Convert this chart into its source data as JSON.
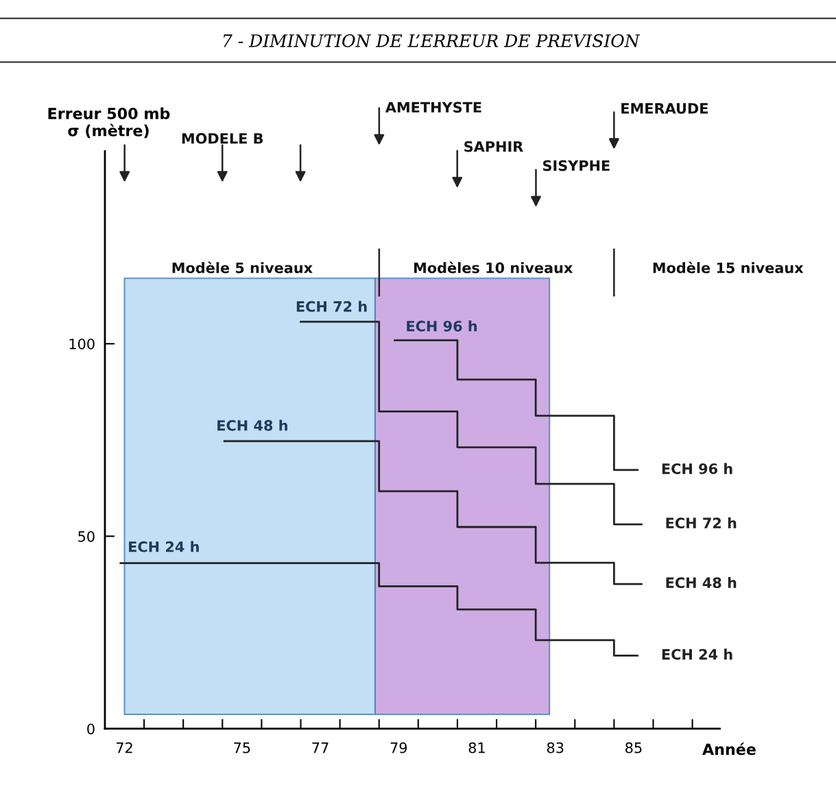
{
  "chart_data": {
    "type": "step",
    "title": "7 - DIMINUTION DE L’ERREUR DE PREVISION",
    "ylabel": "Erreur 500 mb\nσ (mètre)",
    "xlabel": "Année",
    "xlim": [
      72,
      87.7
    ],
    "ylim": [
      0,
      150
    ],
    "xticks": [
      {
        "value": 72.5,
        "label": "72"
      },
      {
        "value": 73,
        "label": null
      },
      {
        "value": 74,
        "label": null
      },
      {
        "value": 75,
        "label": null
      },
      {
        "value": 75.5,
        "label": "75"
      },
      {
        "value": 76,
        "label": null
      },
      {
        "value": 77,
        "label": null
      },
      {
        "value": 77.5,
        "label": "77"
      },
      {
        "value": 78,
        "label": null
      },
      {
        "value": 79,
        "label": null
      },
      {
        "value": 79.5,
        "label": "79"
      },
      {
        "value": 80,
        "label": null
      },
      {
        "value": 81,
        "label": null
      },
      {
        "value": 81.5,
        "label": "81"
      },
      {
        "value": 82,
        "label": null
      },
      {
        "value": 83,
        "label": null
      },
      {
        "value": 83.5,
        "label": "83"
      },
      {
        "value": 84,
        "label": null
      },
      {
        "value": 85,
        "label": null
      },
      {
        "value": 85.5,
        "label": "85"
      },
      {
        "value": 86,
        "label": null
      },
      {
        "value": 87,
        "label": null
      }
    ],
    "yticks": [
      0,
      50,
      100
    ],
    "grid": false,
    "legend": false,
    "series": [
      {
        "name": "ECH 24 h",
        "color": "#222222",
        "x": [
          72.4,
          79,
          81,
          83,
          85,
          85.6
        ],
        "values": [
          43,
          37,
          31,
          23,
          19,
          19
        ]
      },
      {
        "name": "ECH 48 h",
        "color": "#222222",
        "x": [
          75.05,
          79,
          81,
          83,
          85,
          85.7
        ],
        "values": [
          74.7,
          61.7,
          52.4,
          43.1,
          37.6,
          37.6
        ]
      },
      {
        "name": "ECH 72 h",
        "color": "#222222",
        "x": [
          77,
          79,
          81,
          83,
          85,
          85.7
        ],
        "values": [
          105.7,
          82.4,
          73.1,
          63.6,
          53.1,
          53.1
        ]
      },
      {
        "name": "ECH 96 h",
        "color": "#222222",
        "x": [
          79.4,
          81,
          83,
          85,
          85.6
        ],
        "values": [
          100.9,
          90.7,
          81.3,
          67.2,
          67.2
        ]
      }
    ],
    "bands": [
      {
        "axis": "x",
        "from": 72.5,
        "to": 78.9,
        "label": null,
        "color": "#bcdcf4"
      },
      {
        "axis": "x",
        "from": 78.9,
        "to": 83.35,
        "label": null,
        "color": "#c9a4e0"
      }
    ],
    "annotations": [
      "ECH 24 h",
      "ECH 48 h",
      "ECH 72 h",
      "ECH 96 h",
      "Modèle 5 niveaux",
      "Modèles 10 niveaux",
      "Modèle 15 niveaux",
      "MODELE B",
      "AMETHYSTE",
      "SAPHIR",
      "SISYPHE",
      "EMERAUDE"
    ]
  }
}
